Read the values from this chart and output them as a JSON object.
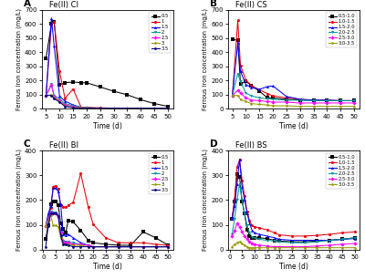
{
  "panel_A": {
    "title": "Fe(II) CI",
    "label": "A",
    "ylim": [
      0,
      700
    ],
    "yticks": [
      0,
      100,
      200,
      300,
      400,
      500,
      600,
      700
    ],
    "series": {
      "0.5": {
        "color": "#000000",
        "marker": "s",
        "x": [
          5,
          7,
          8,
          10,
          12,
          15,
          18,
          20,
          25,
          30,
          35,
          40,
          45,
          50
        ],
        "y": [
          360,
          600,
          615,
          170,
          185,
          190,
          185,
          185,
          155,
          125,
          100,
          65,
          38,
          18
        ]
      },
      "1": {
        "color": "#e8000d",
        "marker": "o",
        "x": [
          5,
          7,
          8,
          10,
          12,
          15,
          18,
          20,
          25,
          30,
          35,
          40,
          45,
          50
        ],
        "y": [
          95,
          600,
          615,
          265,
          75,
          140,
          10,
          10,
          8,
          5,
          5,
          5,
          5,
          5
        ]
      },
      "1.5": {
        "color": "#0000ff",
        "marker": "^",
        "x": [
          5,
          7,
          8,
          10,
          12,
          15,
          18,
          20,
          25,
          30,
          35,
          40,
          45,
          50
        ],
        "y": [
          95,
          640,
          445,
          90,
          55,
          28,
          12,
          8,
          5,
          5,
          5,
          5,
          5,
          5
        ]
      },
      "2": {
        "color": "#009999",
        "marker": "v",
        "x": [
          5,
          7,
          8,
          10,
          12,
          15,
          18,
          20,
          25,
          30,
          35,
          40,
          45,
          50
        ],
        "y": [
          95,
          175,
          95,
          72,
          38,
          22,
          12,
          8,
          5,
          5,
          5,
          5,
          5,
          5
        ]
      },
      "2.5": {
        "color": "#ff00ff",
        "marker": "D",
        "x": [
          5,
          7,
          8,
          10,
          12,
          15,
          18,
          20,
          25,
          30,
          35,
          40,
          45,
          50
        ],
        "y": [
          95,
          168,
          88,
          58,
          28,
          18,
          8,
          8,
          5,
          5,
          5,
          5,
          5,
          5
        ]
      },
      "3": {
        "color": "#999900",
        "marker": "p",
        "x": [
          5,
          7,
          8,
          10,
          12,
          15,
          18,
          20,
          25,
          30,
          35,
          40,
          45,
          50
        ],
        "y": [
          95,
          100,
          80,
          52,
          22,
          12,
          8,
          8,
          5,
          5,
          5,
          5,
          5,
          5
        ]
      },
      "3.5": {
        "color": "#000080",
        "marker": "h",
        "x": [
          5,
          7,
          8,
          10,
          12,
          15,
          18,
          20,
          25,
          30,
          35,
          40,
          45,
          50
        ],
        "y": [
          95,
          95,
          72,
          48,
          18,
          8,
          5,
          5,
          5,
          5,
          5,
          5,
          5,
          5
        ]
      }
    }
  },
  "panel_B": {
    "title": "Fe(II) CS",
    "label": "B",
    "ylim": [
      0,
      700
    ],
    "yticks": [
      0,
      100,
      200,
      300,
      400,
      500,
      600,
      700
    ],
    "series": {
      "0.5-1.0": {
        "color": "#000000",
        "marker": "s",
        "x": [
          5,
          7,
          8,
          10,
          12,
          15,
          18,
          20,
          25,
          30,
          35,
          40,
          45,
          50
        ],
        "y": [
          490,
          485,
          175,
          195,
          165,
          125,
          78,
          78,
          68,
          62,
          62,
          58,
          58,
          58
        ]
      },
      "1.0-1.5": {
        "color": "#e8000d",
        "marker": "o",
        "x": [
          5,
          7,
          8,
          10,
          12,
          15,
          18,
          20,
          25,
          30,
          35,
          40,
          45,
          50
        ],
        "y": [
          95,
          625,
          305,
          205,
          165,
          135,
          108,
          92,
          78,
          68,
          62,
          62,
          58,
          58
        ]
      },
      "1.5-2.0": {
        "color": "#0000ff",
        "marker": "^",
        "x": [
          5,
          7,
          8,
          10,
          12,
          15,
          18,
          20,
          25,
          30,
          35,
          40,
          45,
          50
        ],
        "y": [
          95,
          465,
          265,
          172,
          152,
          138,
          158,
          162,
          88,
          68,
          62,
          62,
          58,
          58
        ]
      },
      "2.0-2.5": {
        "color": "#009999",
        "marker": "v",
        "x": [
          5,
          7,
          8,
          10,
          12,
          15,
          18,
          20,
          25,
          30,
          35,
          40,
          45,
          50
        ],
        "y": [
          95,
          250,
          195,
          112,
          92,
          78,
          72,
          68,
          62,
          62,
          58,
          58,
          58,
          58
        ]
      },
      "2.5-3.0": {
        "color": "#ff00ff",
        "marker": "D",
        "x": [
          5,
          7,
          8,
          10,
          12,
          15,
          18,
          20,
          25,
          30,
          35,
          40,
          45,
          50
        ],
        "y": [
          95,
          132,
          112,
          78,
          62,
          58,
          52,
          48,
          48,
          42,
          42,
          42,
          42,
          42
        ]
      },
      "3.0-3.5": {
        "color": "#999900",
        "marker": "p",
        "x": [
          5,
          7,
          8,
          10,
          12,
          15,
          18,
          20,
          25,
          30,
          35,
          40,
          45,
          50
        ],
        "y": [
          95,
          95,
          68,
          52,
          38,
          32,
          28,
          22,
          22,
          18,
          18,
          18,
          18,
          18
        ]
      }
    }
  },
  "panel_C": {
    "title": "Fe(II) BI",
    "label": "C",
    "ylim": [
      0,
      400
    ],
    "yticks": [
      0,
      100,
      200,
      300,
      400
    ],
    "series": {
      "0.5": {
        "color": "#000000",
        "marker": "s",
        "x": [
          1,
          2,
          3,
          4,
          5,
          6,
          7,
          8,
          9,
          10,
          12,
          15,
          18,
          20,
          25,
          30,
          35,
          40,
          45,
          50
        ],
        "y": [
          45,
          100,
          185,
          195,
          195,
          180,
          105,
          85,
          68,
          118,
          112,
          78,
          38,
          28,
          22,
          18,
          18,
          72,
          48,
          18
        ]
      },
      "1": {
        "color": "#e8000d",
        "marker": "o",
        "x": [
          1,
          2,
          3,
          4,
          5,
          6,
          7,
          8,
          9,
          10,
          12,
          15,
          18,
          20,
          25,
          30,
          35,
          40,
          45,
          50
        ],
        "y": [
          95,
          130,
          170,
          255,
          258,
          245,
          178,
          172,
          172,
          178,
          192,
          308,
          172,
          102,
          48,
          28,
          28,
          28,
          22,
          18
        ]
      },
      "1.5": {
        "color": "#0000ff",
        "marker": "^",
        "x": [
          1,
          2,
          3,
          4,
          5,
          6,
          7,
          8,
          9,
          10,
          12,
          15,
          18,
          20,
          25,
          30,
          35,
          40,
          45,
          50
        ],
        "y": [
          95,
          145,
          175,
          248,
          248,
          235,
          182,
          62,
          58,
          62,
          48,
          28,
          18,
          12,
          12,
          12,
          12,
          12,
          12,
          12
        ]
      },
      "2": {
        "color": "#009999",
        "marker": "v",
        "x": [
          1,
          2,
          3,
          4,
          5,
          6,
          7,
          8,
          9,
          10,
          12,
          15,
          18,
          20,
          25,
          30,
          35,
          40,
          45,
          50
        ],
        "y": [
          95,
          125,
          155,
          152,
          152,
          140,
          72,
          38,
          32,
          32,
          28,
          22,
          18,
          12,
          12,
          12,
          12,
          12,
          12,
          12
        ]
      },
      "2.5": {
        "color": "#ff00ff",
        "marker": "D",
        "x": [
          1,
          2,
          3,
          4,
          5,
          6,
          7,
          8,
          9,
          10,
          12,
          15,
          18,
          20,
          25,
          30,
          35,
          40,
          45,
          50
        ],
        "y": [
          95,
          120,
          150,
          148,
          148,
          135,
          68,
          32,
          28,
          28,
          22,
          22,
          18,
          12,
          12,
          12,
          12,
          12,
          12,
          12
        ]
      },
      "3": {
        "color": "#999900",
        "marker": "p",
        "x": [
          1,
          2,
          3,
          4,
          5,
          6,
          7,
          8,
          9,
          10,
          12,
          15,
          18,
          20,
          25,
          30,
          35,
          40,
          45,
          50
        ],
        "y": [
          95,
          115,
          138,
          98,
          98,
          92,
          48,
          22,
          22,
          22,
          18,
          18,
          12,
          12,
          12,
          12,
          12,
          12,
          12,
          12
        ]
      },
      "3.5": {
        "color": "#000080",
        "marker": "h",
        "x": [
          1,
          2,
          3,
          4,
          5,
          6,
          7,
          8,
          9,
          10,
          12,
          15,
          18,
          20,
          25,
          30,
          35,
          40,
          45,
          50
        ],
        "y": [
          12,
          95,
          148,
          148,
          148,
          135,
          58,
          22,
          22,
          18,
          12,
          12,
          12,
          12,
          12,
          12,
          12,
          12,
          12,
          12
        ]
      }
    }
  },
  "panel_D": {
    "title": "Fe(II) BS",
    "label": "D",
    "ylim": [
      0,
      400
    ],
    "yticks": [
      0,
      100,
      200,
      300,
      400
    ],
    "series": {
      "0.5-1.0": {
        "color": "#000000",
        "marker": "s",
        "x": [
          1,
          2,
          3,
          4,
          5,
          6,
          7,
          8,
          9,
          10,
          12,
          15,
          18,
          20,
          25,
          30,
          35,
          40,
          45,
          50
        ],
        "y": [
          125,
          195,
          305,
          295,
          195,
          145,
          82,
          55,
          48,
          48,
          48,
          45,
          38,
          35,
          32,
          32,
          35,
          38,
          42,
          48
        ]
      },
      "1.0-1.5": {
        "color": "#e8000d",
        "marker": "o",
        "x": [
          1,
          2,
          3,
          4,
          5,
          6,
          7,
          8,
          9,
          10,
          12,
          15,
          18,
          20,
          25,
          30,
          35,
          40,
          45,
          50
        ],
        "y": [
          125,
          205,
          335,
          362,
          280,
          215,
          155,
          118,
          98,
          92,
          88,
          80,
          68,
          60,
          55,
          55,
          58,
          62,
          68,
          72
        ]
      },
      "1.5-2.0": {
        "color": "#0000ff",
        "marker": "^",
        "x": [
          1,
          2,
          3,
          4,
          5,
          6,
          7,
          8,
          9,
          10,
          12,
          15,
          18,
          20,
          25,
          30,
          35,
          40,
          45,
          50
        ],
        "y": [
          125,
          175,
          265,
          365,
          255,
          202,
          148,
          108,
          78,
          68,
          62,
          55,
          48,
          42,
          38,
          38,
          38,
          38,
          42,
          45
        ]
      },
      "2.0-2.5": {
        "color": "#009999",
        "marker": "v",
        "x": [
          1,
          2,
          3,
          4,
          5,
          6,
          7,
          8,
          9,
          10,
          12,
          15,
          18,
          20,
          25,
          30,
          35,
          40,
          45,
          50
        ],
        "y": [
          62,
          125,
          200,
          265,
          200,
          148,
          98,
          68,
          52,
          48,
          42,
          38,
          35,
          32,
          28,
          28,
          32,
          38,
          42,
          48
        ]
      },
      "2.5-3.0": {
        "color": "#ff00ff",
        "marker": "D",
        "x": [
          1,
          2,
          3,
          4,
          5,
          6,
          7,
          8,
          9,
          10,
          12,
          15,
          18,
          20,
          25,
          30,
          35,
          40,
          45,
          50
        ],
        "y": [
          55,
          75,
          108,
          92,
          72,
          55,
          42,
          32,
          25,
          22,
          18,
          15,
          12,
          12,
          12,
          12,
          15,
          18,
          22,
          25
        ]
      },
      "3.0-3.5": {
        "color": "#999900",
        "marker": "p",
        "x": [
          1,
          2,
          3,
          4,
          5,
          6,
          7,
          8,
          9,
          10,
          12,
          15,
          18,
          20,
          25,
          30,
          35,
          40,
          45,
          50
        ],
        "y": [
          12,
          22,
          28,
          32,
          25,
          18,
          12,
          8,
          8,
          8,
          8,
          8,
          8,
          8,
          8,
          8,
          8,
          8,
          8,
          8
        ]
      }
    }
  },
  "xlabel": "Time (d)",
  "ylabel": "Ferrous iron concentration (mg/L)",
  "xticks_AB": [
    5,
    10,
    15,
    20,
    25,
    30,
    35,
    40,
    45,
    50
  ],
  "xticks_CD": [
    0,
    5,
    10,
    15,
    20,
    25,
    30,
    35,
    40,
    45,
    50
  ],
  "xlim_AB": [
    3.5,
    52
  ],
  "xlim_CD": [
    -0.5,
    52
  ]
}
